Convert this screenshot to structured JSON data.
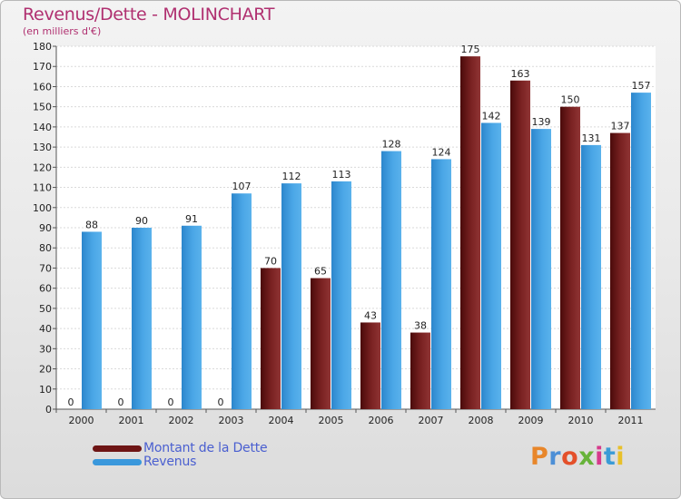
{
  "header": {
    "title": "Revenus/Dette - MOLINCHART",
    "subtitle": "(en milliers d'€)"
  },
  "legend": {
    "debt_label": "Montant de la Dette",
    "revenue_label": "Revenus"
  },
  "logo": {
    "text": "Proxiti"
  },
  "colors": {
    "debt": "#6e1515",
    "revenue": "#3a98dc",
    "axis_text": "#222222"
  },
  "chart_data": {
    "type": "bar",
    "title": "Revenus/Dette - MOLINCHART",
    "ylabel": "(en milliers d'€)",
    "xlabel": "",
    "ylim": [
      0,
      180
    ],
    "ytick_step": 10,
    "grid": true,
    "categories": [
      "2000",
      "2001",
      "2002",
      "2003",
      "2004",
      "2005",
      "2006",
      "2007",
      "2008",
      "2009",
      "2010",
      "2011"
    ],
    "series": [
      {
        "name": "Montant de la Dette",
        "values": [
          0,
          0,
          0,
          0,
          70,
          65,
          43,
          38,
          175,
          163,
          150,
          137
        ]
      },
      {
        "name": "Revenus",
        "values": [
          88,
          90,
          91,
          107,
          112,
          113,
          128,
          124,
          142,
          139,
          131,
          157
        ]
      }
    ]
  }
}
